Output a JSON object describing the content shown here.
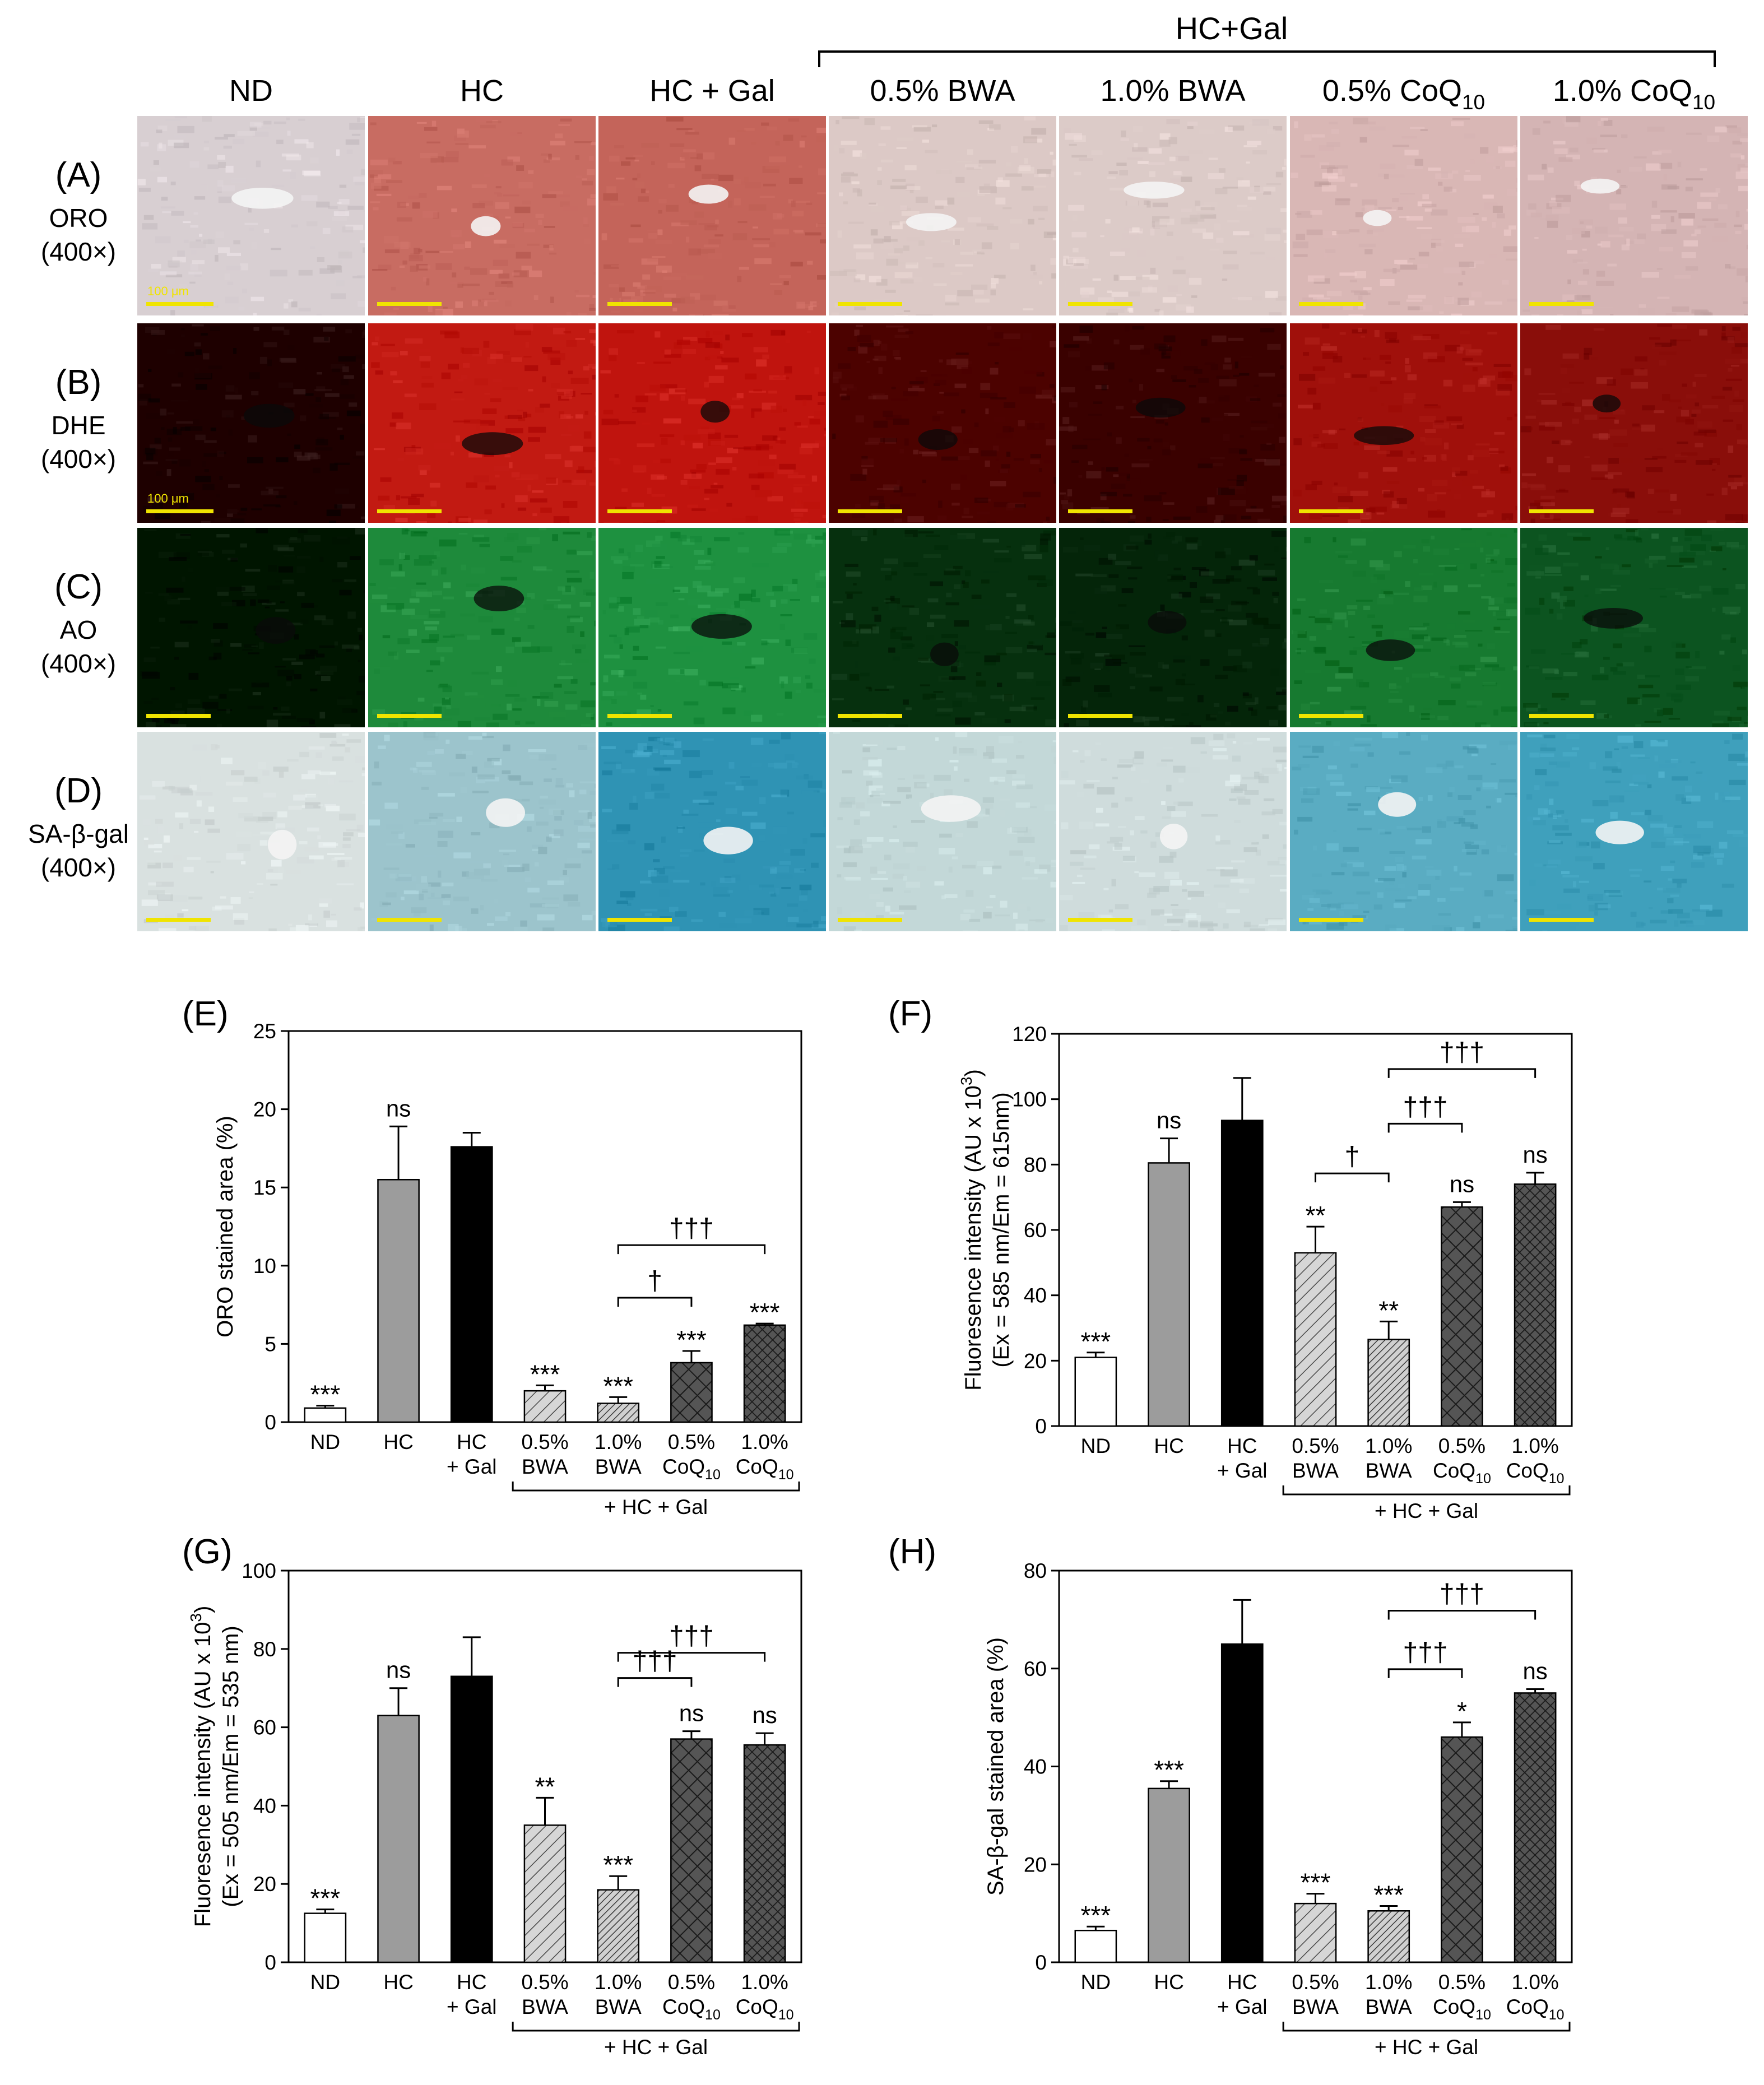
{
  "figure": {
    "group_header": "HC+Gal",
    "columns": [
      {
        "text": "ND",
        "sub": ""
      },
      {
        "text": "HC",
        "sub": ""
      },
      {
        "text": "HC + Gal",
        "sub": ""
      },
      {
        "text": "0.5% BWA",
        "sub": ""
      },
      {
        "text": "1.0% BWA",
        "sub": ""
      },
      {
        "text": "0.5% CoQ",
        "sub": "10"
      },
      {
        "text": "1.0% CoQ",
        "sub": "10"
      }
    ],
    "rows": [
      {
        "letter": "(A)",
        "stain": "ORO",
        "mag": "(400×)",
        "style": "oro",
        "colors": [
          "#d8cfd2",
          "#c86c62",
          "#c4645a",
          "#dcc9c6",
          "#dccbc8",
          "#d9b7b5",
          "#d4b4b4"
        ]
      },
      {
        "letter": "(B)",
        "stain": "DHE",
        "mag": "(400×)",
        "style": "dhe",
        "colors": [
          "#1e0000",
          "#c21a12",
          "#c0140e",
          "#4c0200",
          "#3a0100",
          "#a0100b",
          "#8a0e0a"
        ]
      },
      {
        "letter": "(C)",
        "stain": "AO",
        "mag": "(400×)",
        "style": "ao",
        "colors": [
          "#001500",
          "#1e8a3b",
          "#1e9140",
          "#06300e",
          "#042509",
          "#177a30",
          "#0c5420"
        ]
      },
      {
        "letter": "(D)",
        "stain": "SA-β-gal",
        "mag": "(400×)",
        "style": "sabgal",
        "colors": [
          "#d9e1e0",
          "#9cc4cc",
          "#2f93b4",
          "#c3d8d8",
          "#cfdcdc",
          "#5aacc2",
          "#3fa0bc"
        ]
      }
    ],
    "scale_bar_labels": [
      "100 μm",
      "100 μm"
    ]
  },
  "chart_data": [
    {
      "panel": "(E)",
      "type": "bar",
      "ylabel": [
        "ORO stained area (%)"
      ],
      "ylim": [
        0,
        25
      ],
      "yticks": [
        0,
        5,
        10,
        15,
        20,
        25
      ],
      "categories": [
        [
          "ND"
        ],
        [
          "HC"
        ],
        [
          "HC",
          "+ Gal"
        ],
        [
          "0.5%",
          "BWA"
        ],
        [
          "1.0%",
          "BWA"
        ],
        [
          "0.5%",
          "CoQ",
          "10"
        ],
        [
          "1.0%",
          "CoQ",
          "10"
        ]
      ],
      "values": [
        0.9,
        15.5,
        17.6,
        2.0,
        1.2,
        3.8,
        6.2
      ],
      "errors": [
        0.15,
        3.4,
        0.9,
        0.35,
        0.4,
        0.75,
        0.1
      ],
      "significance": [
        "***",
        "ns",
        "",
        "***",
        "***",
        "***",
        "***"
      ],
      "brackets": [
        {
          "from": 4,
          "to": 5,
          "label": "†"
        },
        {
          "from": 4,
          "to": 6,
          "label": "†††"
        }
      ],
      "group_label": "+ HC + Gal"
    },
    {
      "panel": "(F)",
      "type": "bar",
      "ylabel": [
        "Fluoresence intensity (AU x 10",
        "3",
        ")",
        "(Ex = 585 nm/Em = 615nm)"
      ],
      "ylim": [
        0,
        120
      ],
      "yticks": [
        0,
        20,
        40,
        60,
        80,
        100,
        120
      ],
      "categories": [
        [
          "ND"
        ],
        [
          "HC"
        ],
        [
          "HC",
          "+ Gal"
        ],
        [
          "0.5%",
          "BWA"
        ],
        [
          "1.0%",
          "BWA"
        ],
        [
          "0.5%",
          "CoQ",
          "10"
        ],
        [
          "1.0%",
          "CoQ",
          "10"
        ]
      ],
      "values": [
        21,
        80.5,
        93.5,
        53,
        26.5,
        67,
        74
      ],
      "errors": [
        1.5,
        7.5,
        13,
        8,
        5.5,
        1.5,
        3.5
      ],
      "significance": [
        "***",
        "ns",
        "",
        "**",
        "**",
        "ns",
        "ns"
      ],
      "brackets": [
        {
          "from": 3,
          "to": 4,
          "label": "†"
        },
        {
          "from": 4,
          "to": 5,
          "label": "†††"
        },
        {
          "from": 4,
          "to": 6,
          "label": "†††"
        }
      ],
      "group_label": "+ HC + Gal"
    },
    {
      "panel": "(G)",
      "type": "bar",
      "ylabel": [
        "Fluoresence intensity (AU x 10",
        "3",
        ")",
        "(Ex = 505 nm/Em = 535 nm)"
      ],
      "ylim": [
        0,
        100
      ],
      "yticks": [
        0,
        20,
        40,
        60,
        80,
        100
      ],
      "categories": [
        [
          "ND"
        ],
        [
          "HC"
        ],
        [
          "HC",
          "+ Gal"
        ],
        [
          "0.5%",
          "BWA"
        ],
        [
          "1.0%",
          "BWA"
        ],
        [
          "0.5%",
          "CoQ",
          "10"
        ],
        [
          "1.0%",
          "CoQ",
          "10"
        ]
      ],
      "values": [
        12.5,
        63,
        73,
        35,
        18.5,
        57,
        55.5
      ],
      "errors": [
        1,
        7,
        10,
        7,
        3.5,
        2,
        3
      ],
      "significance": [
        "***",
        "ns",
        "",
        "**",
        "***",
        "ns",
        "ns"
      ],
      "brackets": [
        {
          "from": 4,
          "to": 5,
          "label": "†††"
        },
        {
          "from": 4,
          "to": 6,
          "label": "†††"
        }
      ],
      "group_label": "+ HC + Gal"
    },
    {
      "panel": "(H)",
      "type": "bar",
      "ylabel": [
        "SA-β-gal stained area (%)"
      ],
      "ylim": [
        0,
        80
      ],
      "yticks": [
        0,
        20,
        40,
        60,
        80
      ],
      "categories": [
        [
          "ND"
        ],
        [
          "HC"
        ],
        [
          "HC",
          "+ Gal"
        ],
        [
          "0.5%",
          "BWA"
        ],
        [
          "1.0%",
          "BWA"
        ],
        [
          "0.5%",
          "CoQ",
          "10"
        ],
        [
          "1.0%",
          "CoQ",
          "10"
        ]
      ],
      "values": [
        6.5,
        35.5,
        65,
        12,
        10.5,
        46,
        55
      ],
      "errors": [
        0.8,
        1.5,
        9,
        2,
        1,
        3,
        0.8
      ],
      "significance": [
        "***",
        "***",
        "",
        "***",
        "***",
        "*",
        "ns"
      ],
      "brackets": [
        {
          "from": 4,
          "to": 5,
          "label": "†††"
        },
        {
          "from": 4,
          "to": 6,
          "label": "†††"
        }
      ],
      "group_label": "+ HC + Gal"
    }
  ]
}
